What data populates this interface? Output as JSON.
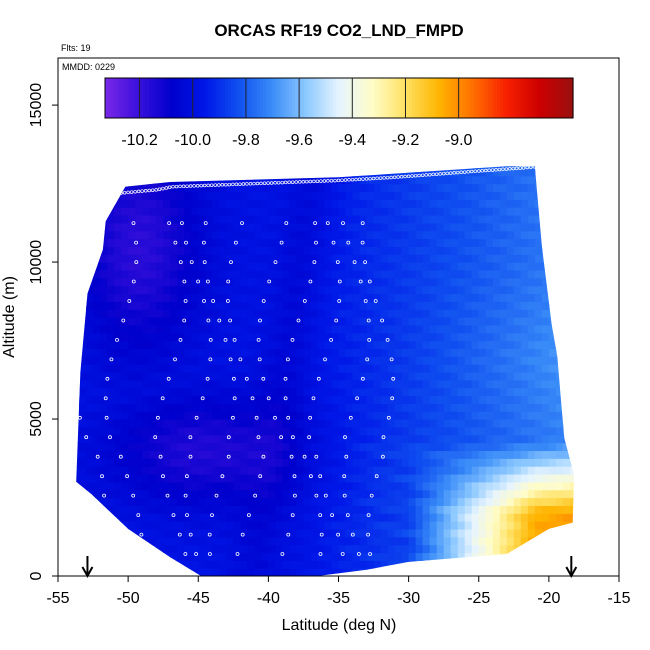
{
  "chart_data": {
    "type": "heatmap",
    "title": "ORCAS RF19 CO2_LND_FMPD",
    "flights_label": "Flts: 19",
    "date_label": "MMDD: 0229",
    "xlabel": "Latitude (deg N)",
    "ylabel": "Altitude (m)",
    "xlim": [
      -55,
      -15
    ],
    "ylim": [
      0,
      16500
    ],
    "xticks": [
      -55,
      -50,
      -45,
      -40,
      -35,
      -30,
      -25,
      -20,
      -15
    ],
    "xtick_labels": [
      "-55",
      "-50",
      "-45",
      "-40",
      "-35",
      "-30",
      "-25",
      "-20",
      "-15"
    ],
    "yticks": [
      0,
      5000,
      10000,
      15000
    ],
    "ytick_labels": [
      "0",
      "5000",
      "10000",
      "15000"
    ],
    "colorbar": {
      "range": [
        -10.33,
        -8.57
      ],
      "ticks": [
        -10.2,
        -10.0,
        -9.8,
        -9.6,
        -9.4,
        -9.2,
        -9.0
      ],
      "tick_labels": [
        "-10.2",
        "-10.0",
        "-9.8",
        "-9.6",
        "-9.4",
        "-9.2",
        "-9.0"
      ],
      "colors": [
        "#7a28e8",
        "#3a10dc",
        "#0000cc",
        "#0018e8",
        "#1050f0",
        "#3a8cf8",
        "#8cc8ff",
        "#e6f4ff",
        "#fffcc8",
        "#ffe060",
        "#ffb400",
        "#ff7000",
        "#f82000",
        "#cc0000",
        "#9a1010"
      ]
    },
    "field_description": "CO2_LND_FMPD values over latitude-altitude; purple/blue (~-10.2) in south and mid altitudes, light blue (~-9.7) aloft north, yellow-red (~-9.0) below 4000 m north of -28 deg",
    "markers_arrows_lat": [
      -52.9,
      -18.4
    ],
    "obs_profiles_lat": [
      -53.2,
      -50.5,
      -47.0,
      -45.2,
      -43.5,
      -41.8,
      -39.6,
      -37.7,
      -36.0,
      -33.9,
      -32.2
    ],
    "top_track": {
      "lat": [
        -50.5,
        -48.0,
        -46.8,
        -35.0,
        -31.0,
        -28.0,
        -25.0,
        -21.8,
        -19.5
      ],
      "alt": [
        12200,
        12300,
        12400,
        12600,
        12700,
        12800,
        12900,
        13000,
        13100
      ]
    }
  }
}
